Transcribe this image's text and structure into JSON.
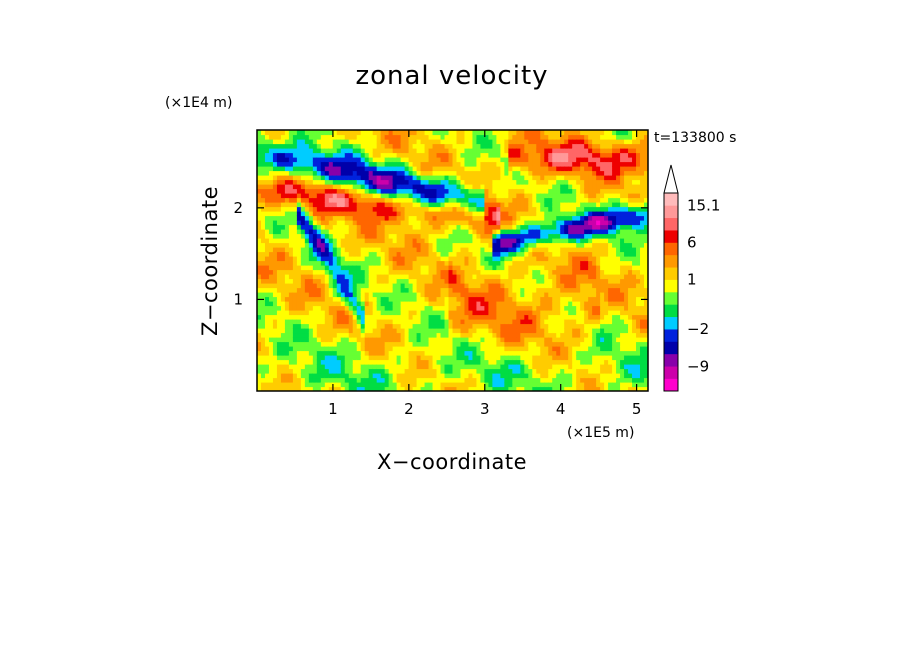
{
  "chart_data": {
    "type": "heatmap",
    "title": "zonal velocity",
    "xlabel": "X−coordinate",
    "ylabel": "Z−coordinate",
    "x_scale_note": "(×1E5 m)",
    "y_scale_note": "(×1E4 m)",
    "time_label": "t=133800 s",
    "xlim": [
      0,
      5.15
    ],
    "ylim": [
      0,
      2.85
    ],
    "x_ticks": [
      1,
      2,
      3,
      4,
      5
    ],
    "x_tick_labels": [
      "1",
      "2",
      "3",
      "4",
      "5"
    ],
    "y_ticks": [
      1,
      2
    ],
    "y_tick_labels": [
      "1",
      "2"
    ],
    "colorbar": {
      "levels": [
        -16,
        -12,
        -9,
        -5,
        -3,
        -2,
        -1,
        0,
        0.5,
        1,
        2,
        4,
        6,
        9,
        12,
        15.1
      ],
      "colors": [
        "#ff00cc",
        "#cc00aa",
        "#8800aa",
        "#0000aa",
        "#0022dd",
        "#00ccff",
        "#00dd44",
        "#66ff33",
        "#ffff00",
        "#ffcc00",
        "#ff9900",
        "#ff6600",
        "#ee0000",
        "#ff6666",
        "#ff9999",
        "#ffbbbb"
      ],
      "labels": [
        "15.1",
        "6",
        "1",
        "−2",
        "−9"
      ],
      "label_values": [
        15.1,
        6,
        1,
        -2,
        -9
      ]
    }
  }
}
